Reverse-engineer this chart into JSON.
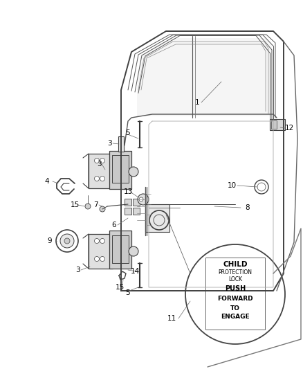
{
  "bg_color": "#ffffff",
  "lc": "#404040",
  "lc2": "#606060",
  "fig_w": 4.38,
  "fig_h": 5.33,
  "dpi": 100,
  "child_lock_text": [
    "CHILD",
    "PROTECTION",
    "LOCK",
    "PUSH",
    "FORWARD",
    "TO",
    "ENGAGE"
  ],
  "child_lock_bold": [
    true,
    false,
    false,
    true,
    true,
    true,
    true
  ],
  "child_lock_sizes": [
    7.5,
    5.5,
    5.5,
    7.0,
    6.5,
    6.5,
    6.5
  ]
}
